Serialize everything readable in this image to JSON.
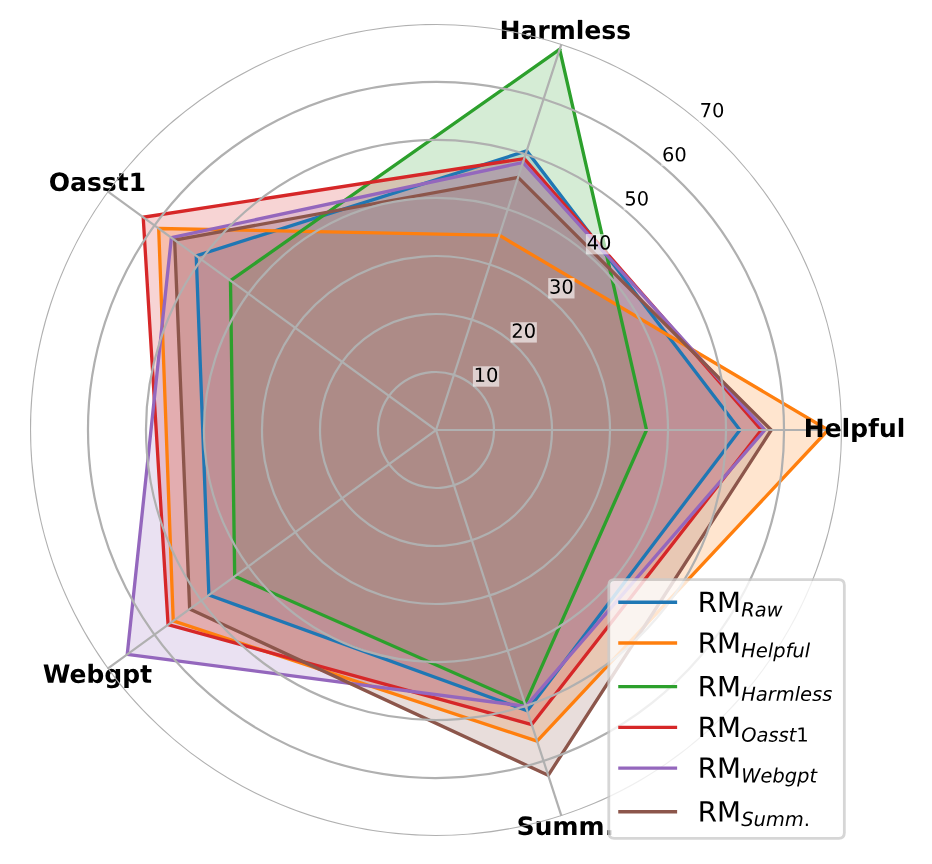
{
  "chart_data": {
    "type": "radar",
    "categories": [
      "Harmless",
      "Helpful",
      "Summ.",
      "Webgpt",
      "Oasst1"
    ],
    "series": [
      {
        "name": "RM$_{Raw}$",
        "color": "#1f77b4",
        "values": [
          50.6,
          52.4,
          50.9,
          48.4,
          51.1
        ]
      },
      {
        "name": "RM$_{Helpful}$",
        "color": "#ff7f0e",
        "values": [
          35.3,
          67.6,
          56.4,
          56.0,
          59.1
        ]
      },
      {
        "name": "RM$_{Harmless}$",
        "color": "#2ca02c",
        "values": [
          69.0,
          36.3,
          49.7,
          42.9,
          43.8
        ]
      },
      {
        "name": "RM$_{Oasst1}$",
        "color": "#d62728",
        "values": [
          49.2,
          56.1,
          53.4,
          57.1,
          62.4
        ]
      },
      {
        "name": "RM$_{Webgpt}$",
        "color": "#9467bd",
        "values": [
          48.5,
          56.7,
          50.1,
          65.8,
          56.4
        ]
      },
      {
        "name": "RM$_{Summ.}$",
        "color": "#8c564b",
        "values": [
          45.8,
          57.8,
          62.6,
          52.5,
          55.7
        ]
      }
    ],
    "ylim": [
      0,
      70
    ],
    "yticks": [
      10,
      20,
      30,
      40,
      50,
      60,
      70
    ],
    "grid": true,
    "legend": "bottom right"
  }
}
